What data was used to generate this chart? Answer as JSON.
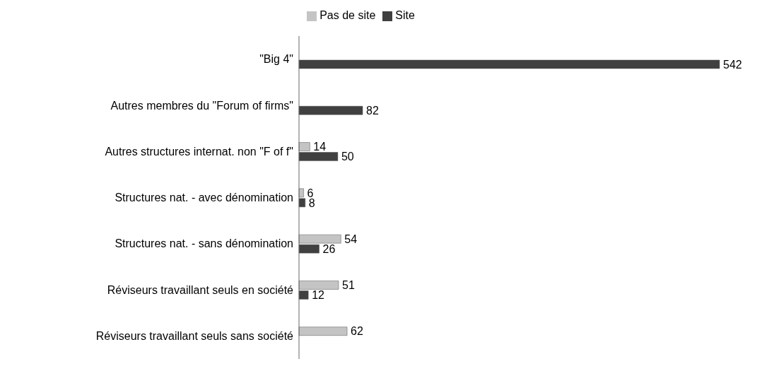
{
  "chart_data": {
    "type": "bar",
    "orientation": "horizontal",
    "categories": [
      "\"Big 4\"",
      "Autres membres du \"Forum of firms\"",
      "Autres structures internat. non \"F of f\"",
      "Structures nat. - avec dénomination",
      "Structures nat. - sans dénomination",
      "Réviseurs travaillant seuls en société",
      "Réviseurs travaillant seuls sans société"
    ],
    "series": [
      {
        "name": "Pas de site",
        "color": "#c4c4c4",
        "values": [
          null,
          null,
          14,
          6,
          54,
          51,
          62
        ]
      },
      {
        "name": "Site",
        "color": "#404040",
        "values": [
          542,
          82,
          50,
          8,
          26,
          12,
          null
        ]
      }
    ],
    "data_labels": true,
    "legend": "top",
    "grid": false
  }
}
